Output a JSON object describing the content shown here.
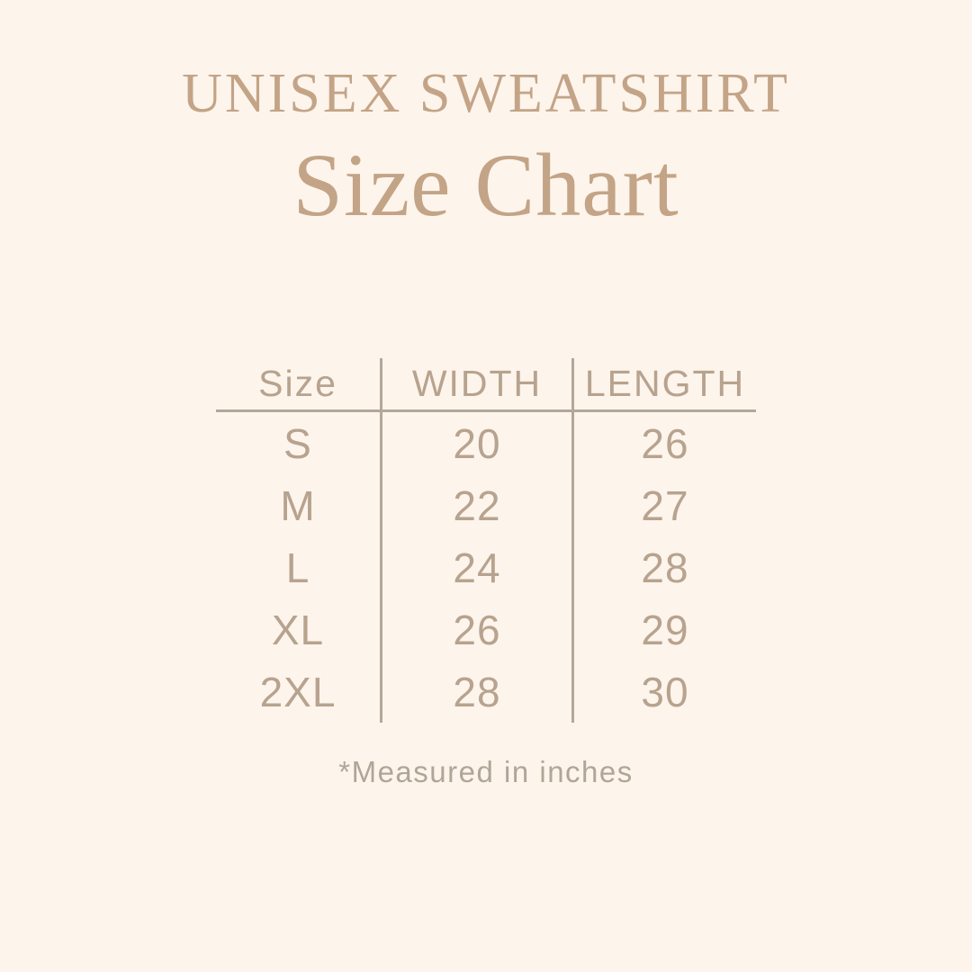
{
  "header": {
    "title": "UNISEX SWEATSHIRT",
    "subtitle": "Size Chart"
  },
  "table": {
    "columns": [
      "Size",
      "WIDTH",
      "LENGTH"
    ],
    "rows": [
      {
        "size": "S",
        "width": "20",
        "length": "26"
      },
      {
        "size": "M",
        "width": "22",
        "length": "27"
      },
      {
        "size": "L",
        "width": "24",
        "length": "28"
      },
      {
        "size": "XL",
        "width": "26",
        "length": "29"
      },
      {
        "size": "2XL",
        "width": "28",
        "length": "30"
      }
    ],
    "unit_note": "*Measured in inches"
  },
  "colors": {
    "background": "#fdf4ec",
    "heading": "#c3a486",
    "table_text": "#b7a38e",
    "line": "#b4a89b",
    "footnote": "#b1a597"
  }
}
